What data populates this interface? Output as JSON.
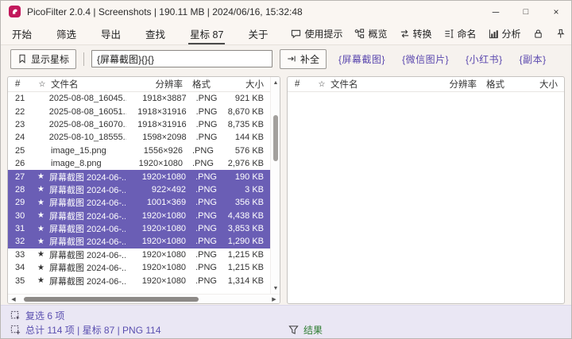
{
  "titlebar": {
    "title": "PicoFilter 2.0.4  |  Screenshots  |  190.11 MB  |  2024/06/16, 15:32:48",
    "minimize_glyph": "─",
    "maximize_glyph": "□",
    "close_glyph": "×"
  },
  "menubar": {
    "items": [
      "开始",
      "筛选",
      "导出",
      "查找",
      "星标 87",
      "关于"
    ],
    "active_item": "星标 87",
    "tools": [
      "使用提示",
      "概览",
      "转换",
      "命名",
      "分析"
    ]
  },
  "toolbar": {
    "show_star_label": "显示星标",
    "pattern_value": "{屏幕截图}{}{}",
    "complete_label": "补全",
    "tags": [
      "{屏幕截图}",
      "{微信图片}",
      "{小红书}",
      "{副本}"
    ]
  },
  "left_table": {
    "headers": [
      "#",
      "☆",
      "文件名",
      "分辨率",
      "格式",
      "大小"
    ],
    "rows": [
      {
        "num": "21",
        "star": "",
        "name": "2025-08-08_16045...",
        "res": "1918×3887",
        "fmt": ".PNG",
        "size": "921 KB",
        "selected": false
      },
      {
        "num": "22",
        "star": "",
        "name": "2025-08-08_16051...",
        "res": "1918×31916",
        "fmt": ".PNG",
        "size": "8,670 KB",
        "selected": false
      },
      {
        "num": "23",
        "star": "",
        "name": "2025-08-08_16070...",
        "res": "1918×31916",
        "fmt": ".PNG",
        "size": "8,735 KB",
        "selected": false
      },
      {
        "num": "24",
        "star": "",
        "name": "2025-08-10_18555...",
        "res": "1598×2098",
        "fmt": ".PNG",
        "size": "144 KB",
        "selected": false
      },
      {
        "num": "25",
        "star": "",
        "name": "image_15.png",
        "res": "1556×926",
        "fmt": ".PNG",
        "size": "576 KB",
        "selected": false
      },
      {
        "num": "26",
        "star": "",
        "name": "image_8.png",
        "res": "1920×1080",
        "fmt": ".PNG",
        "size": "2,976 KB",
        "selected": false
      },
      {
        "num": "27",
        "star": "★",
        "name": "屏幕截图 2024-06-...",
        "res": "1920×1080",
        "fmt": ".PNG",
        "size": "190 KB",
        "selected": true
      },
      {
        "num": "28",
        "star": "★",
        "name": "屏幕截图 2024-06-...",
        "res": "922×492",
        "fmt": ".PNG",
        "size": "3 KB",
        "selected": true
      },
      {
        "num": "29",
        "star": "★",
        "name": "屏幕截图 2024-06-...",
        "res": "1001×369",
        "fmt": ".PNG",
        "size": "356 KB",
        "selected": true
      },
      {
        "num": "30",
        "star": "★",
        "name": "屏幕截图 2024-06-...",
        "res": "1920×1080",
        "fmt": ".PNG",
        "size": "4,438 KB",
        "selected": true
      },
      {
        "num": "31",
        "star": "★",
        "name": "屏幕截图 2024-06-...",
        "res": "1920×1080",
        "fmt": ".PNG",
        "size": "3,853 KB",
        "selected": true
      },
      {
        "num": "32",
        "star": "★",
        "name": "屏幕截图 2024-06-...",
        "res": "1920×1080",
        "fmt": ".PNG",
        "size": "1,290 KB",
        "selected": true
      },
      {
        "num": "33",
        "star": "★",
        "name": "屏幕截图 2024-06-...",
        "res": "1920×1080",
        "fmt": ".PNG",
        "size": "1,215 KB",
        "selected": false
      },
      {
        "num": "34",
        "star": "★",
        "name": "屏幕截图 2024-06-...",
        "res": "1920×1080",
        "fmt": ".PNG",
        "size": "1,215 KB",
        "selected": false
      },
      {
        "num": "35",
        "star": "★",
        "name": "屏幕截图 2024-06-...",
        "res": "1920×1080",
        "fmt": ".PNG",
        "size": "1,314 KB",
        "selected": false
      }
    ]
  },
  "right_table": {
    "headers": [
      "#",
      "☆",
      "文件名",
      "分辨率",
      "格式",
      "大小"
    ],
    "rows": []
  },
  "statusbar": {
    "selection": "复选 6 项",
    "summary": "总计 114 项  |  星标 87  |  PNG 114",
    "result": "结果"
  },
  "colors": {
    "selected_row": "#6a5eb5",
    "tag_text": "#5a47ae",
    "status_text": "#5a4fb0",
    "result_green": "#2e7d32",
    "app_icon": "#c2185b"
  }
}
